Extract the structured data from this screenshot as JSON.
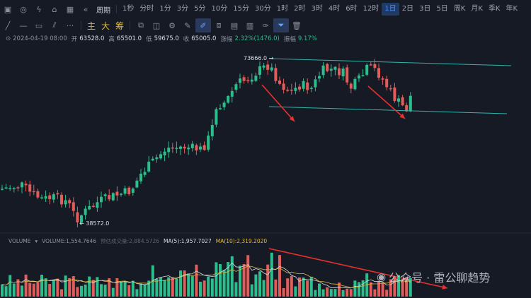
{
  "toolbar": {
    "period_label": "周期",
    "timeframes": [
      "1秒",
      "分时",
      "1分",
      "3分",
      "5分",
      "10分",
      "15分",
      "30分",
      "1时",
      "2时",
      "3时",
      "4时",
      "6时",
      "12时",
      "1日",
      "2日",
      "3日",
      "5日",
      "周K",
      "月K",
      "季K",
      "年K"
    ],
    "active_timeframe": "1日"
  },
  "drawbar": {
    "indicators": [
      "主",
      "大",
      "筹"
    ]
  },
  "ohlc": {
    "date": "2024-04-19 08:00",
    "open_label": "开",
    "open": "63528.0",
    "high_label": "高",
    "high": "65501.0",
    "low_label": "低",
    "low": "59675.0",
    "close_label": "收",
    "close": "65005.0",
    "change_label": "涨幅",
    "change": "2.32%(1476.0)",
    "amp_label": "振幅",
    "amp": "9.17%"
  },
  "chart_data": {
    "type": "candlestick",
    "max_label": "73666.0",
    "min_label": "38572.0",
    "ylim": [
      36000,
      76000
    ],
    "colors": {
      "up": "#2bbd8b",
      "down": "#e25c59",
      "line": "#2fb7b0",
      "arrow": "#e8312d"
    }
  },
  "volume": {
    "label": "VOLUME",
    "value": "VOLUME:1,554.7646",
    "est": "预估成交量:2,884.5726",
    "ma5": "MA(5):1,957.7027",
    "ma10": "MA(10):2,319.2020"
  },
  "watermark": "公众号 · 雷公聊趋势"
}
